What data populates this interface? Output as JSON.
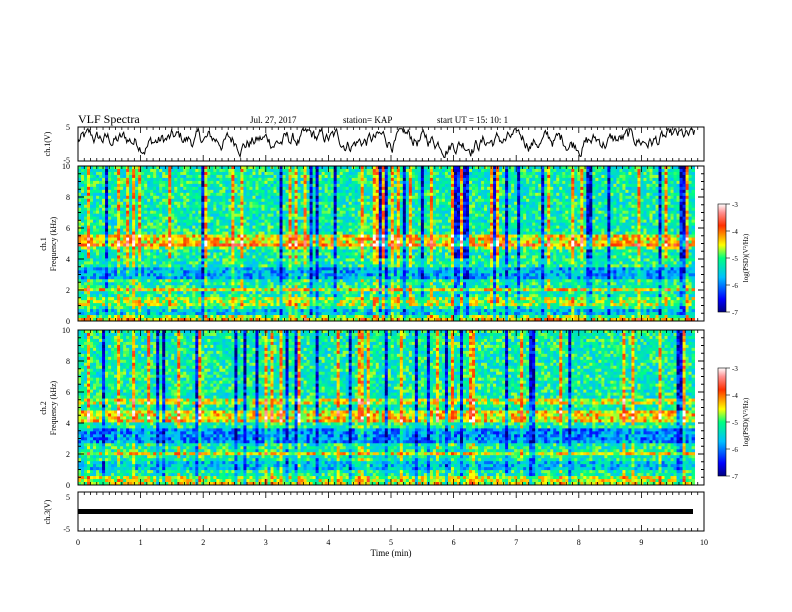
{
  "header": {
    "title": "VLF Spectra",
    "date": "Jul. 27, 2017",
    "station": "station= KAP",
    "start": "start UT =  15: 10: 1"
  },
  "chart_data": [
    {
      "type": "line",
      "panel": "ch1-waveform",
      "ylabel": "ch.1(V)",
      "ylim": [
        -5,
        5
      ],
      "yticks": [
        "5",
        "-5"
      ],
      "xlim": [
        0,
        10
      ],
      "x_end": 9.85,
      "color": "#000000"
    },
    {
      "type": "heatmap",
      "panel": "ch1-spectrogram",
      "ylabel": "ch.1\nFrequency (kHz)",
      "ylim": [
        0,
        10
      ],
      "yticks": [
        "0",
        "2",
        "4",
        "6",
        "8",
        "10"
      ],
      "xlim": [
        0,
        10
      ],
      "colorbar": {
        "label": "log(PSD)(V²/Hz)",
        "range": [
          -7,
          -3
        ],
        "ticks": [
          "-3",
          "-4",
          "-5",
          "-6",
          "-7"
        ]
      }
    },
    {
      "type": "heatmap",
      "panel": "ch2-spectrogram",
      "ylabel": "ch.2\nFrequency (kHz)",
      "ylim": [
        0,
        10
      ],
      "yticks": [
        "0",
        "2",
        "4",
        "6",
        "8",
        "10"
      ],
      "xlim": [
        0,
        10
      ],
      "colorbar": {
        "label": "log(PSD)(V²/Hz)",
        "range": [
          -7,
          -3
        ],
        "ticks": [
          "-3",
          "-4",
          "-5",
          "-6",
          "-7"
        ]
      }
    },
    {
      "type": "line",
      "panel": "ch3-waveform",
      "ylabel": "ch.3(V)",
      "ylim": [
        -5,
        5
      ],
      "yticks": [
        "5",
        "-5"
      ],
      "xlim": [
        0,
        10
      ],
      "y_value": 0,
      "color": "#000000"
    }
  ],
  "xaxis": {
    "label": "Time (min)",
    "ticks": [
      "0",
      "1",
      "2",
      "3",
      "4",
      "5",
      "6",
      "7",
      "8",
      "9",
      "10"
    ]
  }
}
